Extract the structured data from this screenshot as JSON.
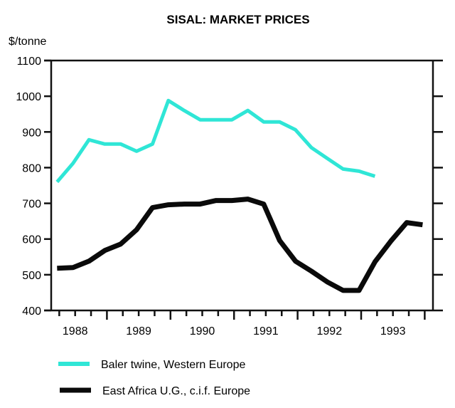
{
  "chart_data": {
    "type": "line",
    "title": "SISAL:  MARKET PRICES",
    "xlabel": "",
    "ylabel": "$/tonne",
    "ylim": [
      400,
      1100
    ],
    "yticks": [
      400,
      500,
      600,
      700,
      800,
      900,
      1000,
      1100
    ],
    "ytick_labels": [
      "400",
      "500",
      "600",
      "700",
      "800",
      "900",
      "1000",
      "1100"
    ],
    "x_unit": "quarter",
    "x_start": "1988 Q1",
    "x_quarters": 24,
    "xtick_labels": [
      "1988",
      "1989",
      "1990",
      "1991",
      "1992",
      "1993"
    ],
    "grid": false,
    "legend_position": "bottom-left",
    "series": [
      {
        "name": "Baler twine, Western Europe",
        "color": "#2fe6d6",
        "values": [
          760,
          812,
          878,
          866,
          866,
          846,
          866,
          988,
          960,
          934,
          934,
          934,
          960,
          928,
          928,
          906,
          856,
          826,
          796,
          790,
          776
        ]
      },
      {
        "name": "East Africa U.G., c.i.f. Europe",
        "color": "#0a0a0a",
        "values": [
          518,
          520,
          538,
          568,
          586,
          626,
          688,
          696,
          698,
          698,
          708,
          708,
          712,
          698,
          596,
          538,
          510,
          480,
          456,
          456,
          536,
          594,
          646,
          640
        ]
      }
    ]
  }
}
